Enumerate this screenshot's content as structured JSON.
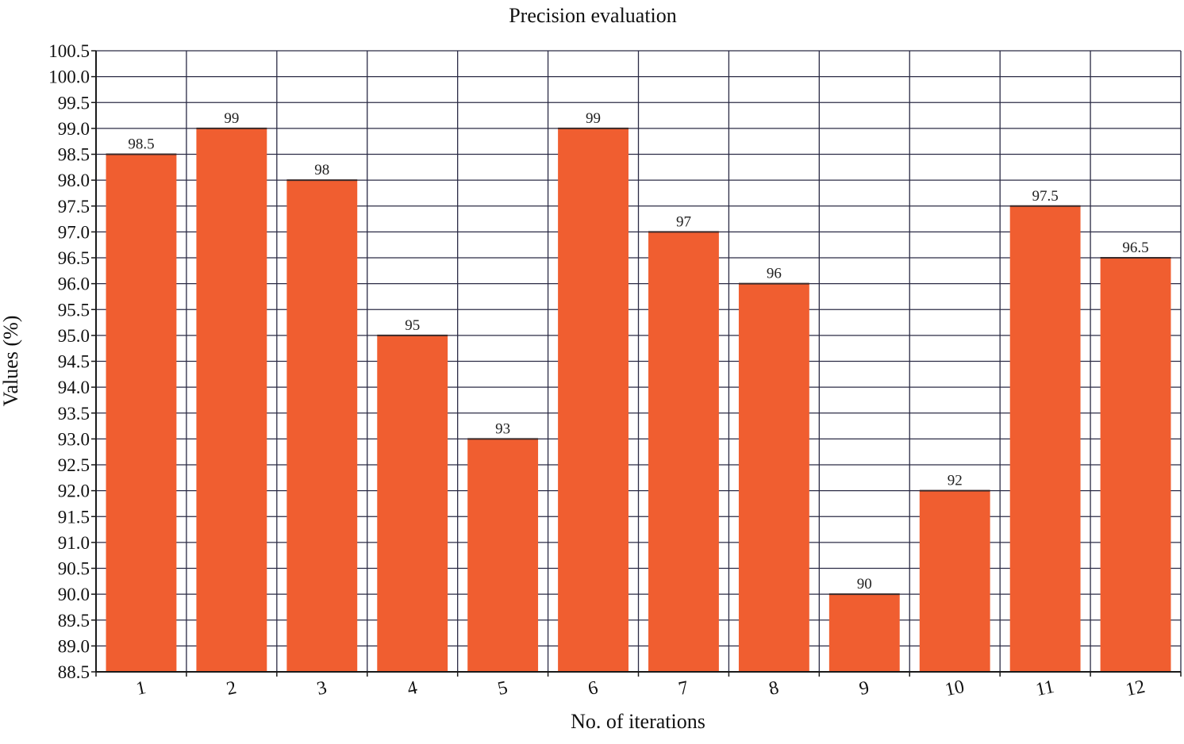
{
  "chart_data": {
    "type": "bar",
    "title": "Precision evaluation",
    "xlabel": "No. of iterations",
    "ylabel": "Values (%)",
    "categories": [
      "1",
      "2",
      "3",
      "4",
      "5",
      "6",
      "7",
      "8",
      "9",
      "10",
      "11",
      "12"
    ],
    "values": [
      98.5,
      99,
      98,
      95,
      93,
      99,
      97,
      96,
      90,
      92,
      97.5,
      96.5
    ],
    "data_labels": [
      "98.5",
      "99",
      "98",
      "95",
      "93",
      "99",
      "97",
      "96",
      "90",
      "92",
      "97.5",
      "96.5"
    ],
    "ylim": [
      88.5,
      100.5
    ],
    "yticks": [
      "88.5",
      "89.0",
      "89.5",
      "90.0",
      "90.5",
      "91.0",
      "91.5",
      "92.0",
      "92.5",
      "93.0",
      "93.5",
      "94.0",
      "94.5",
      "95.0",
      "95.5",
      "96.0",
      "96.5",
      "97.0",
      "97.5",
      "98.0",
      "98.5",
      "99.0",
      "99.5",
      "100.0",
      "100.5"
    ],
    "grid": true,
    "legend": "none",
    "colors": {
      "bar": "#f05e30",
      "grid": "#2b2b45",
      "axis": "#1a1a1a"
    }
  }
}
